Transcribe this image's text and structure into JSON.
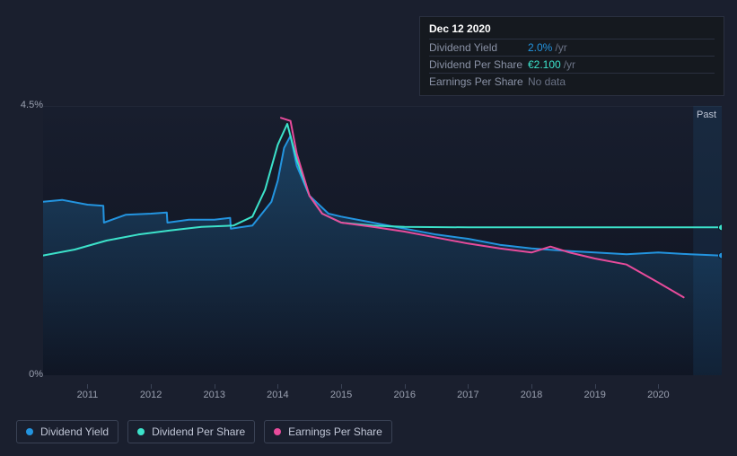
{
  "tooltip": {
    "date": "Dec 12 2020",
    "rows": [
      {
        "label": "Dividend Yield",
        "value": "2.0%",
        "unit": "/yr",
        "value_color": "#2394df"
      },
      {
        "label": "Dividend Per Share",
        "value": "€2.100",
        "unit": "/yr",
        "value_color": "#3ce2ca"
      },
      {
        "label": "Earnings Per Share",
        "value": "No data",
        "unit": "",
        "value_color": "#6a7285"
      }
    ]
  },
  "chart": {
    "type": "line",
    "background_color": "#1a1f2e",
    "plot_bg_top": "#181e2e",
    "plot_bg_bottom": "#0f1320",
    "grid_line_top_color": "#2a3040",
    "x_years": [
      2011,
      2012,
      2013,
      2014,
      2015,
      2016,
      2017,
      2018,
      2019,
      2020
    ],
    "x_domain": [
      2010.3,
      2021.0
    ],
    "y_domain": [
      0,
      4.5
    ],
    "y_ticks": [
      {
        "v": 4.5,
        "label": "4.5%"
      },
      {
        "v": 0,
        "label": "0%"
      }
    ],
    "past_label": "Past",
    "future_band_start": 2020.55,
    "future_band_color": "rgba(35,148,223,0.10)",
    "series": [
      {
        "id": "dividend_yield",
        "label": "Dividend Yield",
        "color": "#2394df",
        "line_width": 2,
        "area_fill": true,
        "area_top_color": "rgba(35,148,223,0.30)",
        "area_bottom_color": "rgba(35,148,223,0.02)",
        "end_marker": true,
        "points": [
          [
            2010.3,
            2.9
          ],
          [
            2010.6,
            2.93
          ],
          [
            2011.0,
            2.85
          ],
          [
            2011.25,
            2.83
          ],
          [
            2011.26,
            2.55
          ],
          [
            2011.6,
            2.68
          ],
          [
            2012.0,
            2.7
          ],
          [
            2012.25,
            2.72
          ],
          [
            2012.26,
            2.55
          ],
          [
            2012.6,
            2.6
          ],
          [
            2013.0,
            2.6
          ],
          [
            2013.25,
            2.63
          ],
          [
            2013.26,
            2.45
          ],
          [
            2013.6,
            2.5
          ],
          [
            2013.9,
            2.9
          ],
          [
            2014.0,
            3.25
          ],
          [
            2014.1,
            3.8
          ],
          [
            2014.2,
            4.0
          ],
          [
            2014.3,
            3.5
          ],
          [
            2014.5,
            3.0
          ],
          [
            2014.8,
            2.7
          ],
          [
            2015.0,
            2.65
          ],
          [
            2015.5,
            2.55
          ],
          [
            2016.0,
            2.45
          ],
          [
            2016.5,
            2.35
          ],
          [
            2017.0,
            2.28
          ],
          [
            2017.5,
            2.18
          ],
          [
            2018.0,
            2.12
          ],
          [
            2018.5,
            2.08
          ],
          [
            2019.0,
            2.05
          ],
          [
            2019.5,
            2.02
          ],
          [
            2020.0,
            2.05
          ],
          [
            2020.5,
            2.02
          ],
          [
            2021.0,
            2.0
          ]
        ]
      },
      {
        "id": "dividend_per_share",
        "label": "Dividend Per Share",
        "color": "#3ce2ca",
        "line_width": 2,
        "area_fill": false,
        "end_marker": true,
        "points": [
          [
            2010.3,
            2.0
          ],
          [
            2010.8,
            2.1
          ],
          [
            2011.3,
            2.25
          ],
          [
            2011.8,
            2.35
          ],
          [
            2012.3,
            2.42
          ],
          [
            2012.8,
            2.48
          ],
          [
            2013.3,
            2.5
          ],
          [
            2013.6,
            2.65
          ],
          [
            2013.8,
            3.1
          ],
          [
            2014.0,
            3.85
          ],
          [
            2014.15,
            4.2
          ],
          [
            2014.3,
            3.6
          ],
          [
            2014.5,
            3.0
          ],
          [
            2014.7,
            2.7
          ],
          [
            2015.0,
            2.55
          ],
          [
            2015.5,
            2.5
          ],
          [
            2016.0,
            2.48
          ],
          [
            2017.0,
            2.47
          ],
          [
            2018.0,
            2.47
          ],
          [
            2019.0,
            2.47
          ],
          [
            2020.0,
            2.47
          ],
          [
            2021.0,
            2.47
          ]
        ]
      },
      {
        "id": "earnings_per_share",
        "label": "Earnings Per Share",
        "color": "#e84b9b",
        "line_width": 2,
        "area_fill": false,
        "end_marker": false,
        "points": [
          [
            2014.05,
            4.3
          ],
          [
            2014.2,
            4.25
          ],
          [
            2014.3,
            3.7
          ],
          [
            2014.5,
            3.0
          ],
          [
            2014.7,
            2.7
          ],
          [
            2015.0,
            2.55
          ],
          [
            2015.5,
            2.48
          ],
          [
            2016.0,
            2.4
          ],
          [
            2016.5,
            2.3
          ],
          [
            2017.0,
            2.2
          ],
          [
            2017.5,
            2.12
          ],
          [
            2018.0,
            2.05
          ],
          [
            2018.3,
            2.15
          ],
          [
            2018.6,
            2.05
          ],
          [
            2019.0,
            1.95
          ],
          [
            2019.5,
            1.85
          ],
          [
            2020.0,
            1.55
          ],
          [
            2020.4,
            1.3
          ]
        ]
      }
    ],
    "legend_fontsize": 12,
    "axis_fontsize": 11,
    "text_color": "#9aa0b0"
  }
}
